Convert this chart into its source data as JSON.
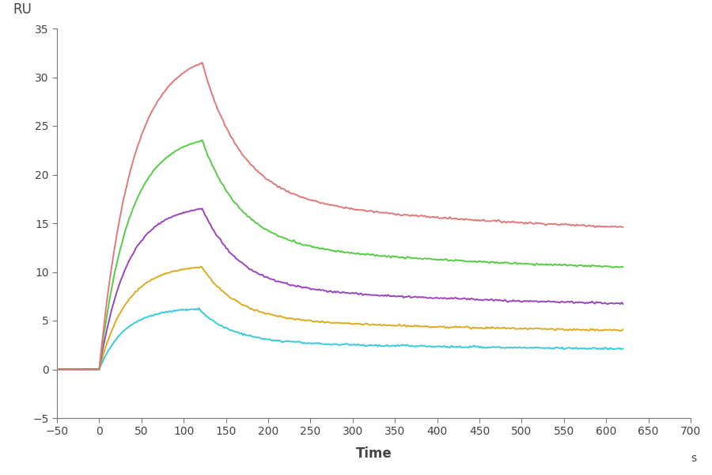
{
  "xlabel": "Time",
  "xlabel_unit": "s",
  "ylabel": "RU",
  "xlim": [
    -50,
    700
  ],
  "ylim": [
    -5,
    35
  ],
  "xticks": [
    -50,
    0,
    50,
    100,
    150,
    200,
    250,
    300,
    350,
    400,
    450,
    500,
    550,
    600,
    650,
    700
  ],
  "yticks": [
    -5,
    0,
    5,
    10,
    15,
    20,
    25,
    30,
    35
  ],
  "curves": [
    {
      "color": "#E07878",
      "peak": 31.5,
      "peak_time": 122,
      "plateau": 13.3,
      "tau_decay": 45,
      "tau_rise": 38
    },
    {
      "color": "#55CC44",
      "peak": 23.5,
      "peak_time": 122,
      "plateau": 9.5,
      "tau_decay": 45,
      "tau_rise": 35
    },
    {
      "color": "#9944BB",
      "peak": 16.5,
      "peak_time": 122,
      "plateau": 6.0,
      "tau_decay": 42,
      "tau_rise": 33
    },
    {
      "color": "#DDAA22",
      "peak": 10.5,
      "peak_time": 122,
      "plateau": 3.5,
      "tau_decay": 40,
      "tau_rise": 32
    },
    {
      "color": "#33CCDD",
      "peak": 6.2,
      "peak_time": 118,
      "plateau": 1.8,
      "tau_decay": 38,
      "tau_rise": 30
    }
  ],
  "background_color": "#FFFFFF",
  "spine_color": "#777777",
  "tick_color": "#444444",
  "label_fontsize": 12,
  "tick_fontsize": 10,
  "linewidth": 1.4,
  "noise_assoc": 0.1,
  "noise_dissoc": 0.12
}
